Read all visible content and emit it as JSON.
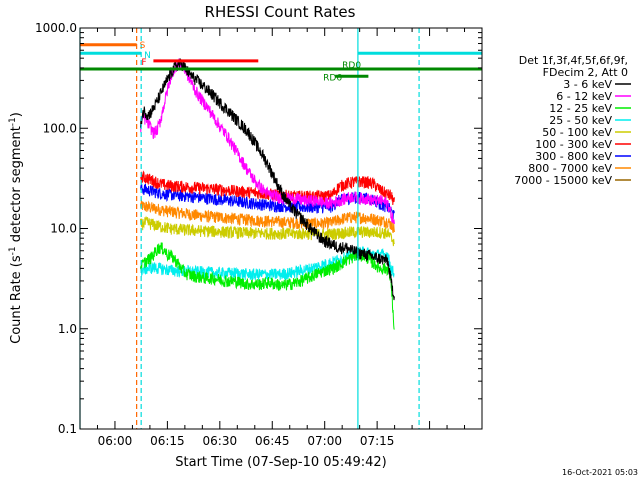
{
  "chart_data": {
    "type": "line",
    "title": "RHESSI Count Rates",
    "xlabel": "Start Time (07-Sep-10 05:49:42)",
    "ylabel_parts": [
      "Count Rate (s",
      "-1",
      " detector segment",
      "-1",
      ")"
    ],
    "ylabel": "Count Rate (s^-1 detector segment^-1)",
    "yscale": "log",
    "xlim_min": [
      -10,
      105
    ],
    "ylim": [
      0.1,
      1000
    ],
    "x_ticks": [
      {
        "min": 0,
        "label": "06:00"
      },
      {
        "min": 15,
        "label": "06:15"
      },
      {
        "min": 30,
        "label": "06:30"
      },
      {
        "min": 45,
        "label": "06:45"
      },
      {
        "min": 60,
        "label": "07:00"
      },
      {
        "min": 75,
        "label": "07:15"
      }
    ],
    "y_ticks": [
      {
        "value": 0.1,
        "label": "0.1"
      },
      {
        "value": 1,
        "label": "1.0"
      },
      {
        "value": 10,
        "label": "10.0"
      },
      {
        "value": 100,
        "label": "100.0"
      },
      {
        "value": 1000,
        "label": "1000.0"
      }
    ],
    "legend_header": [
      "Det 1f,3f,4f,5f,6f,9f,",
      "FDecim 2, Att 0"
    ],
    "series": [
      {
        "name": "3 - 6 keV",
        "color": "#000000",
        "points": [
          [
            7.3,
            100
          ],
          [
            7.8,
            140
          ],
          [
            8.5,
            150
          ],
          [
            9.5,
            135
          ],
          [
            10.5,
            148
          ],
          [
            11.5,
            170
          ],
          [
            12.5,
            200
          ],
          [
            13.5,
            240
          ],
          [
            14.5,
            280
          ],
          [
            15.5,
            330
          ],
          [
            16.5,
            380
          ],
          [
            17.5,
            420
          ],
          [
            18.5,
            440
          ],
          [
            19.5,
            430
          ],
          [
            20.5,
            380
          ],
          [
            22,
            330
          ],
          [
            24,
            290
          ],
          [
            26,
            250
          ],
          [
            28,
            215
          ],
          [
            30,
            180
          ],
          [
            32,
            155
          ],
          [
            34,
            130
          ],
          [
            36,
            110
          ],
          [
            38,
            93
          ],
          [
            40,
            72
          ],
          [
            42,
            56
          ],
          [
            44,
            42
          ],
          [
            46,
            30
          ],
          [
            48,
            22
          ],
          [
            50,
            17
          ],
          [
            52,
            14
          ],
          [
            54,
            12
          ],
          [
            56,
            10
          ],
          [
            58,
            8.5
          ],
          [
            60,
            7.5
          ],
          [
            62,
            7
          ],
          [
            64,
            6.5
          ],
          [
            66,
            6.5
          ],
          [
            68,
            6
          ],
          [
            70,
            5.7
          ],
          [
            72,
            5.5
          ],
          [
            74,
            5.2
          ],
          [
            76,
            5
          ],
          [
            78,
            4.8
          ],
          [
            79,
            3
          ],
          [
            80,
            2
          ]
        ]
      },
      {
        "name": "6 - 12 keV",
        "color": "#ff00ff",
        "points": [
          [
            7.3,
            100
          ],
          [
            8,
            130
          ],
          [
            9,
            120
          ],
          [
            10,
            105
          ],
          [
            11,
            90
          ],
          [
            12,
            95
          ],
          [
            13,
            120
          ],
          [
            14,
            170
          ],
          [
            15,
            240
          ],
          [
            16,
            330
          ],
          [
            17,
            400
          ],
          [
            18,
            440
          ],
          [
            19,
            430
          ],
          [
            20,
            390
          ],
          [
            21,
            330
          ],
          [
            22,
            280
          ],
          [
            23,
            240
          ],
          [
            24,
            210
          ],
          [
            26,
            170
          ],
          [
            28,
            135
          ],
          [
            30,
            105
          ],
          [
            32,
            85
          ],
          [
            34,
            65
          ],
          [
            36,
            50
          ],
          [
            38,
            38
          ],
          [
            40,
            30
          ],
          [
            42,
            25
          ],
          [
            44,
            22
          ],
          [
            46,
            21
          ],
          [
            48,
            20
          ],
          [
            50,
            20
          ],
          [
            52,
            20
          ],
          [
            54,
            19
          ],
          [
            56,
            19
          ],
          [
            58,
            19
          ],
          [
            60,
            18
          ],
          [
            62,
            18
          ],
          [
            64,
            19
          ],
          [
            66,
            20
          ],
          [
            68,
            21
          ],
          [
            70,
            20
          ],
          [
            72,
            20
          ],
          [
            74,
            19
          ],
          [
            76,
            19
          ],
          [
            78,
            18
          ],
          [
            79,
            14
          ],
          [
            80,
            11
          ]
        ]
      },
      {
        "name": "12 - 25 keV",
        "color": "#00ee00",
        "points": [
          [
            7.3,
            4.2
          ],
          [
            9,
            4.8
          ],
          [
            10,
            5
          ],
          [
            11,
            5.5
          ],
          [
            12,
            6.2
          ],
          [
            13,
            6.5
          ],
          [
            14,
            6.2
          ],
          [
            15,
            5.5
          ],
          [
            16,
            5.4
          ],
          [
            17,
            5
          ],
          [
            18,
            4.5
          ],
          [
            19,
            4
          ],
          [
            20,
            3.6
          ],
          [
            22,
            3.4
          ],
          [
            24,
            3.3
          ],
          [
            26,
            3.2
          ],
          [
            28,
            3.2
          ],
          [
            30,
            3.1
          ],
          [
            32,
            3
          ],
          [
            34,
            3
          ],
          [
            36,
            2.9
          ],
          [
            38,
            2.8
          ],
          [
            40,
            2.8
          ],
          [
            42,
            2.8
          ],
          [
            44,
            2.9
          ],
          [
            46,
            2.8
          ],
          [
            48,
            2.7
          ],
          [
            50,
            2.8
          ],
          [
            52,
            2.9
          ],
          [
            54,
            3.1
          ],
          [
            56,
            3.3
          ],
          [
            58,
            3.6
          ],
          [
            60,
            3.8
          ],
          [
            62,
            4
          ],
          [
            64,
            4.3
          ],
          [
            66,
            4.8
          ],
          [
            68,
            5.2
          ],
          [
            70,
            5.5
          ],
          [
            72,
            5.2
          ],
          [
            74,
            4.5
          ],
          [
            76,
            4
          ],
          [
            78,
            4
          ],
          [
            79,
            3
          ],
          [
            80,
            0.8
          ]
        ]
      },
      {
        "name": "25 - 50 keV",
        "color": "#00eeee",
        "points": [
          [
            7.3,
            3.8
          ],
          [
            9,
            4
          ],
          [
            11,
            4.1
          ],
          [
            13,
            4
          ],
          [
            15,
            3.9
          ],
          [
            17,
            3.8
          ],
          [
            20,
            3.8
          ],
          [
            23,
            3.7
          ],
          [
            26,
            3.7
          ],
          [
            29,
            3.6
          ],
          [
            32,
            3.6
          ],
          [
            35,
            3.6
          ],
          [
            38,
            3.5
          ],
          [
            41,
            3.5
          ],
          [
            44,
            3.5
          ],
          [
            47,
            3.5
          ],
          [
            50,
            3.6
          ],
          [
            53,
            3.8
          ],
          [
            56,
            4
          ],
          [
            59,
            4.3
          ],
          [
            62,
            4.6
          ],
          [
            65,
            5
          ],
          [
            68,
            5.5
          ],
          [
            70,
            5.8
          ],
          [
            72,
            5.8
          ],
          [
            74,
            5.5
          ],
          [
            76,
            5.5
          ],
          [
            78,
            5.5
          ],
          [
            79,
            4
          ],
          [
            80,
            3.5
          ]
        ]
      },
      {
        "name": "50 - 100 keV",
        "color": "#cccc00",
        "points": [
          [
            7.3,
            11
          ],
          [
            9,
            11.5
          ],
          [
            11,
            11
          ],
          [
            13,
            10.5
          ],
          [
            16,
            10
          ],
          [
            19,
            9.8
          ],
          [
            22,
            9.6
          ],
          [
            25,
            9.5
          ],
          [
            28,
            9.4
          ],
          [
            31,
            9.3
          ],
          [
            34,
            9.2
          ],
          [
            37,
            9.1
          ],
          [
            40,
            9
          ],
          [
            43,
            9
          ],
          [
            46,
            9
          ],
          [
            49,
            8.9
          ],
          [
            52,
            8.9
          ],
          [
            55,
            8.9
          ],
          [
            58,
            8.8
          ],
          [
            61,
            8.8
          ],
          [
            64,
            9
          ],
          [
            67,
            9.2
          ],
          [
            70,
            9.3
          ],
          [
            73,
            9.2
          ],
          [
            76,
            9.2
          ],
          [
            78,
            9
          ],
          [
            79,
            8
          ],
          [
            80,
            7.5
          ]
        ]
      },
      {
        "name": "100 - 300 keV",
        "color": "#ff0000",
        "points": [
          [
            7.3,
            33
          ],
          [
            9,
            32
          ],
          [
            11,
            30
          ],
          [
            13,
            28
          ],
          [
            15,
            27
          ],
          [
            18,
            26.5
          ],
          [
            21,
            26
          ],
          [
            24,
            25.5
          ],
          [
            27,
            25
          ],
          [
            30,
            24.5
          ],
          [
            33,
            24
          ],
          [
            36,
            23.5
          ],
          [
            39,
            23
          ],
          [
            42,
            22.5
          ],
          [
            45,
            22
          ],
          [
            48,
            21.5
          ],
          [
            51,
            21
          ],
          [
            54,
            21
          ],
          [
            57,
            21
          ],
          [
            60,
            21
          ],
          [
            62,
            21.5
          ],
          [
            64,
            26
          ],
          [
            66,
            28
          ],
          [
            68,
            29
          ],
          [
            70,
            29.5
          ],
          [
            72,
            29
          ],
          [
            74,
            28
          ],
          [
            76,
            24
          ],
          [
            78,
            22
          ],
          [
            79,
            21
          ],
          [
            80,
            18
          ]
        ]
      },
      {
        "name": "300 - 800 keV",
        "color": "#0000ff",
        "points": [
          [
            7.3,
            25
          ],
          [
            9,
            24.5
          ],
          [
            11,
            23.5
          ],
          [
            13,
            22.5
          ],
          [
            15,
            22
          ],
          [
            18,
            21.5
          ],
          [
            21,
            21
          ],
          [
            24,
            20.5
          ],
          [
            27,
            20
          ],
          [
            30,
            19.5
          ],
          [
            33,
            19
          ],
          [
            36,
            18.5
          ],
          [
            39,
            18
          ],
          [
            42,
            17.5
          ],
          [
            45,
            17
          ],
          [
            48,
            16.8
          ],
          [
            51,
            16.6
          ],
          [
            54,
            16.5
          ],
          [
            57,
            16.4
          ],
          [
            60,
            16.4
          ],
          [
            62,
            16.6
          ],
          [
            64,
            19
          ],
          [
            66,
            20
          ],
          [
            68,
            20.5
          ],
          [
            70,
            20.5
          ],
          [
            72,
            20
          ],
          [
            74,
            19.5
          ],
          [
            76,
            17.5
          ],
          [
            78,
            16.5
          ],
          [
            79,
            15
          ],
          [
            80,
            13
          ]
        ]
      },
      {
        "name": "800 - 7000 keV",
        "color": "#ff8800",
        "points": [
          [
            7.3,
            17
          ],
          [
            9,
            16.5
          ],
          [
            11,
            16
          ],
          [
            13,
            15.5
          ],
          [
            15,
            15
          ],
          [
            18,
            14.5
          ],
          [
            21,
            14
          ],
          [
            24,
            13.5
          ],
          [
            27,
            13.2
          ],
          [
            30,
            13
          ],
          [
            33,
            12.7
          ],
          [
            36,
            12.4
          ],
          [
            39,
            12.2
          ],
          [
            42,
            12
          ],
          [
            45,
            11.8
          ],
          [
            48,
            11.6
          ],
          [
            51,
            11.5
          ],
          [
            54,
            11.4
          ],
          [
            57,
            11.3
          ],
          [
            60,
            11.3
          ],
          [
            62,
            11.5
          ],
          [
            64,
            12.2
          ],
          [
            66,
            12.8
          ],
          [
            68,
            13
          ],
          [
            70,
            13
          ],
          [
            72,
            12.8
          ],
          [
            74,
            12.5
          ],
          [
            76,
            12
          ],
          [
            78,
            11.8
          ],
          [
            79,
            11
          ],
          [
            80,
            10
          ]
        ]
      },
      {
        "name": "7000 - 15000 keV",
        "color": "#996600",
        "points": []
      }
    ],
    "annotations": [
      {
        "text": "S",
        "color": "#ff6600",
        "x_min": -10,
        "x_end_min": 6.2,
        "y": 680
      },
      {
        "text": "N",
        "color": "#00dddd",
        "x_min": -10,
        "x_end_min": 7.5,
        "y": 560
      },
      {
        "text": "F",
        "color": "#ff0000",
        "x_min": 11,
        "x_end_min": 41,
        "y": 470
      },
      {
        "text": "RD0",
        "color": "#008800",
        "x_min": -10,
        "x_end_min": 105,
        "y": 390
      },
      {
        "text": "RD6",
        "color": "#008800",
        "x_min": 63,
        "x_end_min": 72.5,
        "y": 330
      }
    ],
    "right_cyan_bar": {
      "x_min": 69.5,
      "x_end_min": 105,
      "y": 560
    },
    "vlines": [
      {
        "x_min": -10,
        "color": "#00dddd",
        "dash": false
      },
      {
        "x_min": 6.2,
        "color": "#ff6600",
        "dash": true
      },
      {
        "x_min": 7.5,
        "color": "#00dddd",
        "dash": true
      },
      {
        "x_min": 69.5,
        "color": "#00dddd",
        "dash": false
      },
      {
        "x_min": 87,
        "color": "#00dddd",
        "dash": true
      }
    ],
    "grid": false
  },
  "footer_timestamp": "16-Oct-2021 05:03"
}
